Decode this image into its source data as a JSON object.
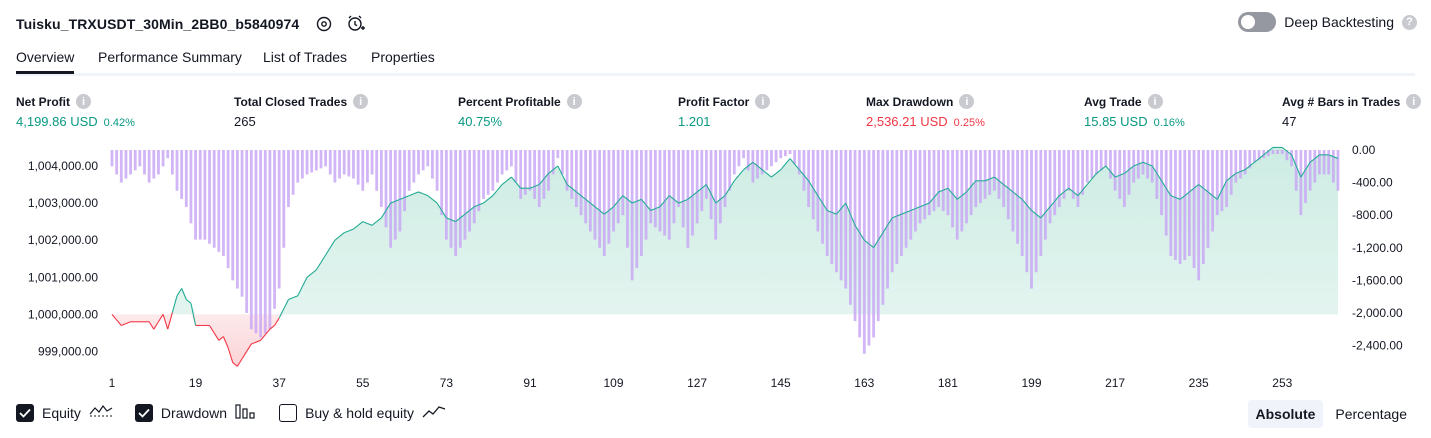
{
  "header": {
    "title": "Tuisku_TRXUSDT_30Min_2BB0_b5840974",
    "deep_backtesting_label": "Deep Backtesting",
    "deep_backtesting_enabled": false
  },
  "tabs": [
    {
      "label": "Overview",
      "active": true
    },
    {
      "label": "Performance Summary",
      "active": false
    },
    {
      "label": "List of Trades",
      "active": false
    },
    {
      "label": "Properties",
      "active": false
    }
  ],
  "metrics": [
    {
      "label": "Net Profit",
      "value": "4,199.86 USD",
      "pct": "0.42%",
      "color": "#089981"
    },
    {
      "label": "Total Closed Trades",
      "value": "265",
      "pct": "",
      "color": "#131722"
    },
    {
      "label": "Percent Profitable",
      "value": "40.75%",
      "pct": "",
      "color": "#089981"
    },
    {
      "label": "Profit Factor",
      "value": "1.201",
      "pct": "",
      "color": "#089981"
    },
    {
      "label": "Max Drawdown",
      "value": "2,536.21 USD",
      "pct": "0.25%",
      "color": "#f23645"
    },
    {
      "label": "Avg Trade",
      "value": "15.85 USD",
      "pct": "0.16%",
      "color": "#089981"
    },
    {
      "label": "Avg # Bars in Trades",
      "value": "47",
      "pct": "",
      "color": "#131722"
    }
  ],
  "legend": {
    "equity_label": "Equity",
    "equity_checked": true,
    "drawdown_label": "Drawdown",
    "drawdown_checked": true,
    "buyhold_label": "Buy & hold equity",
    "buyhold_checked": false
  },
  "modes": {
    "absolute": "Absolute",
    "percentage": "Percentage",
    "active": "Absolute"
  },
  "chart_data": {
    "type": "area",
    "initial_capital": 1000000,
    "x_ticks": [
      "1",
      "19",
      "37",
      "55",
      "73",
      "91",
      "109",
      "127",
      "145",
      "163",
      "181",
      "199",
      "217",
      "235",
      "253"
    ],
    "left_axis_ticks": [
      "1,004,000.00",
      "1,003,000.00",
      "1,002,000.00",
      "1,001,000.00",
      "1,000,000.00",
      "999,000.00"
    ],
    "right_axis_ticks": [
      "0.00",
      "-400.00",
      "-800.00",
      "-1,200.00",
      "-1,600.00",
      "-2,000.00",
      "-2,400.00"
    ],
    "left_ylim": [
      998500,
      1004700
    ],
    "right_ylim": [
      -2700,
      0
    ],
    "colors": {
      "equity_up": "#22ab94",
      "equity_down": "#f23645",
      "drawdown": "#c9a8f5",
      "area_up": "#cdece3",
      "area_down": "#fbd4d7"
    },
    "series": [
      {
        "name": "Equity",
        "anchors": [
          [
            1,
            1000000
          ],
          [
            3,
            999700
          ],
          [
            5,
            999800
          ],
          [
            7,
            999800
          ],
          [
            9,
            999800
          ],
          [
            10,
            999600
          ],
          [
            12,
            1000000
          ],
          [
            13,
            999600
          ],
          [
            15,
            1000500
          ],
          [
            16,
            1000700
          ],
          [
            17,
            1000400
          ],
          [
            18,
            1000300
          ],
          [
            19,
            999700
          ],
          [
            20,
            999700
          ],
          [
            22,
            999700
          ],
          [
            23,
            999500
          ],
          [
            24,
            999300
          ],
          [
            25,
            999400
          ],
          [
            26,
            999100
          ],
          [
            27,
            998700
          ],
          [
            28,
            998600
          ],
          [
            29,
            998800
          ],
          [
            30,
            999000
          ],
          [
            31,
            999200
          ],
          [
            33,
            999300
          ],
          [
            35,
            999600
          ],
          [
            36,
            999700
          ],
          [
            37,
            999900
          ],
          [
            39,
            1000400
          ],
          [
            41,
            1000500
          ],
          [
            43,
            1001000
          ],
          [
            45,
            1001200
          ],
          [
            47,
            1001600
          ],
          [
            49,
            1002000
          ],
          [
            51,
            1002200
          ],
          [
            53,
            1002300
          ],
          [
            55,
            1002500
          ],
          [
            57,
            1002400
          ],
          [
            59,
            1002600
          ],
          [
            61,
            1003000
          ],
          [
            63,
            1003100
          ],
          [
            65,
            1003200
          ],
          [
            67,
            1003300
          ],
          [
            69,
            1003200
          ],
          [
            71,
            1003000
          ],
          [
            73,
            1002600
          ],
          [
            75,
            1002500
          ],
          [
            77,
            1002700
          ],
          [
            79,
            1002900
          ],
          [
            81,
            1003000
          ],
          [
            83,
            1003200
          ],
          [
            85,
            1003500
          ],
          [
            87,
            1003700
          ],
          [
            89,
            1003400
          ],
          [
            91,
            1003400
          ],
          [
            93,
            1003500
          ],
          [
            95,
            1003800
          ],
          [
            97,
            1004000
          ],
          [
            99,
            1003500
          ],
          [
            101,
            1003300
          ],
          [
            103,
            1003100
          ],
          [
            105,
            1002900
          ],
          [
            107,
            1002700
          ],
          [
            109,
            1002900
          ],
          [
            111,
            1003200
          ],
          [
            113,
            1003000
          ],
          [
            115,
            1003100
          ],
          [
            117,
            1002800
          ],
          [
            119,
            1002900
          ],
          [
            121,
            1003200
          ],
          [
            123,
            1003000
          ],
          [
            125,
            1003100
          ],
          [
            127,
            1003300
          ],
          [
            129,
            1003500
          ],
          [
            131,
            1003000
          ],
          [
            133,
            1003200
          ],
          [
            135,
            1003600
          ],
          [
            137,
            1003900
          ],
          [
            139,
            1004100
          ],
          [
            141,
            1003900
          ],
          [
            143,
            1003700
          ],
          [
            145,
            1003900
          ],
          [
            147,
            1004200
          ],
          [
            149,
            1003900
          ],
          [
            151,
            1003600
          ],
          [
            153,
            1003200
          ],
          [
            155,
            1002800
          ],
          [
            157,
            1002700
          ],
          [
            159,
            1003000
          ],
          [
            161,
            1002400
          ],
          [
            163,
            1002000
          ],
          [
            165,
            1001800
          ],
          [
            167,
            1002200
          ],
          [
            169,
            1002600
          ],
          [
            171,
            1002700
          ],
          [
            173,
            1002800
          ],
          [
            175,
            1002900
          ],
          [
            177,
            1003000
          ],
          [
            179,
            1003300
          ],
          [
            181,
            1003400
          ],
          [
            183,
            1003100
          ],
          [
            185,
            1003300
          ],
          [
            187,
            1003600
          ],
          [
            189,
            1003600
          ],
          [
            191,
            1003700
          ],
          [
            193,
            1003500
          ],
          [
            195,
            1003300
          ],
          [
            197,
            1003100
          ],
          [
            199,
            1002800
          ],
          [
            201,
            1002600
          ],
          [
            203,
            1002900
          ],
          [
            205,
            1003200
          ],
          [
            207,
            1003400
          ],
          [
            209,
            1003200
          ],
          [
            211,
            1003500
          ],
          [
            213,
            1003800
          ],
          [
            215,
            1004000
          ],
          [
            217,
            1003700
          ],
          [
            219,
            1003800
          ],
          [
            221,
            1004000
          ],
          [
            223,
            1004100
          ],
          [
            225,
            1004000
          ],
          [
            227,
            1003600
          ],
          [
            229,
            1003200
          ],
          [
            231,
            1003100
          ],
          [
            233,
            1003300
          ],
          [
            235,
            1003500
          ],
          [
            237,
            1003300
          ],
          [
            239,
            1003100
          ],
          [
            241,
            1003600
          ],
          [
            243,
            1003800
          ],
          [
            245,
            1003900
          ],
          [
            247,
            1004100
          ],
          [
            249,
            1004300
          ],
          [
            251,
            1004500
          ],
          [
            253,
            1004500
          ],
          [
            255,
            1004300
          ],
          [
            257,
            1003700
          ],
          [
            259,
            1004100
          ],
          [
            261,
            1004300
          ],
          [
            263,
            1004300
          ],
          [
            265,
            1004200
          ]
        ]
      },
      {
        "name": "Drawdown",
        "anchors": [
          [
            1,
            -200
          ],
          [
            3,
            -400
          ],
          [
            5,
            -300
          ],
          [
            7,
            -200
          ],
          [
            9,
            -400
          ],
          [
            11,
            -300
          ],
          [
            13,
            -100
          ],
          [
            15,
            -500
          ],
          [
            17,
            -700
          ],
          [
            19,
            -1100
          ],
          [
            21,
            -1100
          ],
          [
            23,
            -1200
          ],
          [
            25,
            -1300
          ],
          [
            27,
            -1600
          ],
          [
            29,
            -1800
          ],
          [
            31,
            -2200
          ],
          [
            33,
            -2300
          ],
          [
            35,
            -2200
          ],
          [
            37,
            -1700
          ],
          [
            39,
            -700
          ],
          [
            41,
            -400
          ],
          [
            43,
            -300
          ],
          [
            45,
            -250
          ],
          [
            47,
            -200
          ],
          [
            49,
            -400
          ],
          [
            51,
            -300
          ],
          [
            53,
            -350
          ],
          [
            55,
            -500
          ],
          [
            57,
            -300
          ],
          [
            59,
            -700
          ],
          [
            61,
            -1200
          ],
          [
            63,
            -1000
          ],
          [
            65,
            -500
          ],
          [
            67,
            -300
          ],
          [
            69,
            -200
          ],
          [
            71,
            -500
          ],
          [
            73,
            -1100
          ],
          [
            75,
            -1300
          ],
          [
            77,
            -1100
          ],
          [
            79,
            -900
          ],
          [
            81,
            -600
          ],
          [
            83,
            -500
          ],
          [
            85,
            -300
          ],
          [
            87,
            -200
          ],
          [
            89,
            -600
          ],
          [
            91,
            -500
          ],
          [
            93,
            -700
          ],
          [
            95,
            -500
          ],
          [
            97,
            -100
          ],
          [
            99,
            -500
          ],
          [
            101,
            -700
          ],
          [
            103,
            -900
          ],
          [
            105,
            -1100
          ],
          [
            107,
            -1300
          ],
          [
            109,
            -1000
          ],
          [
            111,
            -800
          ],
          [
            113,
            -1600
          ],
          [
            115,
            -1300
          ],
          [
            117,
            -900
          ],
          [
            119,
            -1000
          ],
          [
            121,
            -1100
          ],
          [
            123,
            -700
          ],
          [
            125,
            -1200
          ],
          [
            127,
            -900
          ],
          [
            129,
            -600
          ],
          [
            131,
            -1100
          ],
          [
            133,
            -700
          ],
          [
            135,
            -300
          ],
          [
            137,
            -100
          ],
          [
            139,
            -400
          ],
          [
            141,
            -300
          ],
          [
            143,
            -200
          ],
          [
            145,
            -100
          ],
          [
            147,
            -50
          ],
          [
            149,
            -300
          ],
          [
            151,
            -700
          ],
          [
            153,
            -1000
          ],
          [
            155,
            -1300
          ],
          [
            157,
            -1500
          ],
          [
            159,
            -1700
          ],
          [
            161,
            -2100
          ],
          [
            163,
            -2500
          ],
          [
            165,
            -2300
          ],
          [
            167,
            -1900
          ],
          [
            169,
            -1500
          ],
          [
            171,
            -1300
          ],
          [
            173,
            -1100
          ],
          [
            175,
            -900
          ],
          [
            177,
            -800
          ],
          [
            179,
            -700
          ],
          [
            181,
            -800
          ],
          [
            183,
            -1100
          ],
          [
            185,
            -900
          ],
          [
            187,
            -700
          ],
          [
            189,
            -600
          ],
          [
            191,
            -500
          ],
          [
            193,
            -700
          ],
          [
            195,
            -1000
          ],
          [
            197,
            -1300
          ],
          [
            199,
            -1700
          ],
          [
            201,
            -1300
          ],
          [
            203,
            -900
          ],
          [
            205,
            -700
          ],
          [
            207,
            -500
          ],
          [
            209,
            -700
          ],
          [
            211,
            -400
          ],
          [
            213,
            -300
          ],
          [
            215,
            -200
          ],
          [
            217,
            -500
          ],
          [
            219,
            -700
          ],
          [
            221,
            -400
          ],
          [
            223,
            -300
          ],
          [
            225,
            -400
          ],
          [
            227,
            -800
          ],
          [
            229,
            -1300
          ],
          [
            231,
            -1400
          ],
          [
            233,
            -1300
          ],
          [
            235,
            -1600
          ],
          [
            237,
            -1200
          ],
          [
            239,
            -800
          ],
          [
            241,
            -700
          ],
          [
            243,
            -400
          ],
          [
            245,
            -300
          ],
          [
            247,
            -150
          ],
          [
            249,
            -100
          ],
          [
            251,
            -50
          ],
          [
            253,
            -50
          ],
          [
            255,
            -200
          ],
          [
            257,
            -800
          ],
          [
            259,
            -500
          ],
          [
            261,
            -300
          ],
          [
            263,
            -300
          ],
          [
            265,
            -500
          ]
        ]
      }
    ]
  }
}
